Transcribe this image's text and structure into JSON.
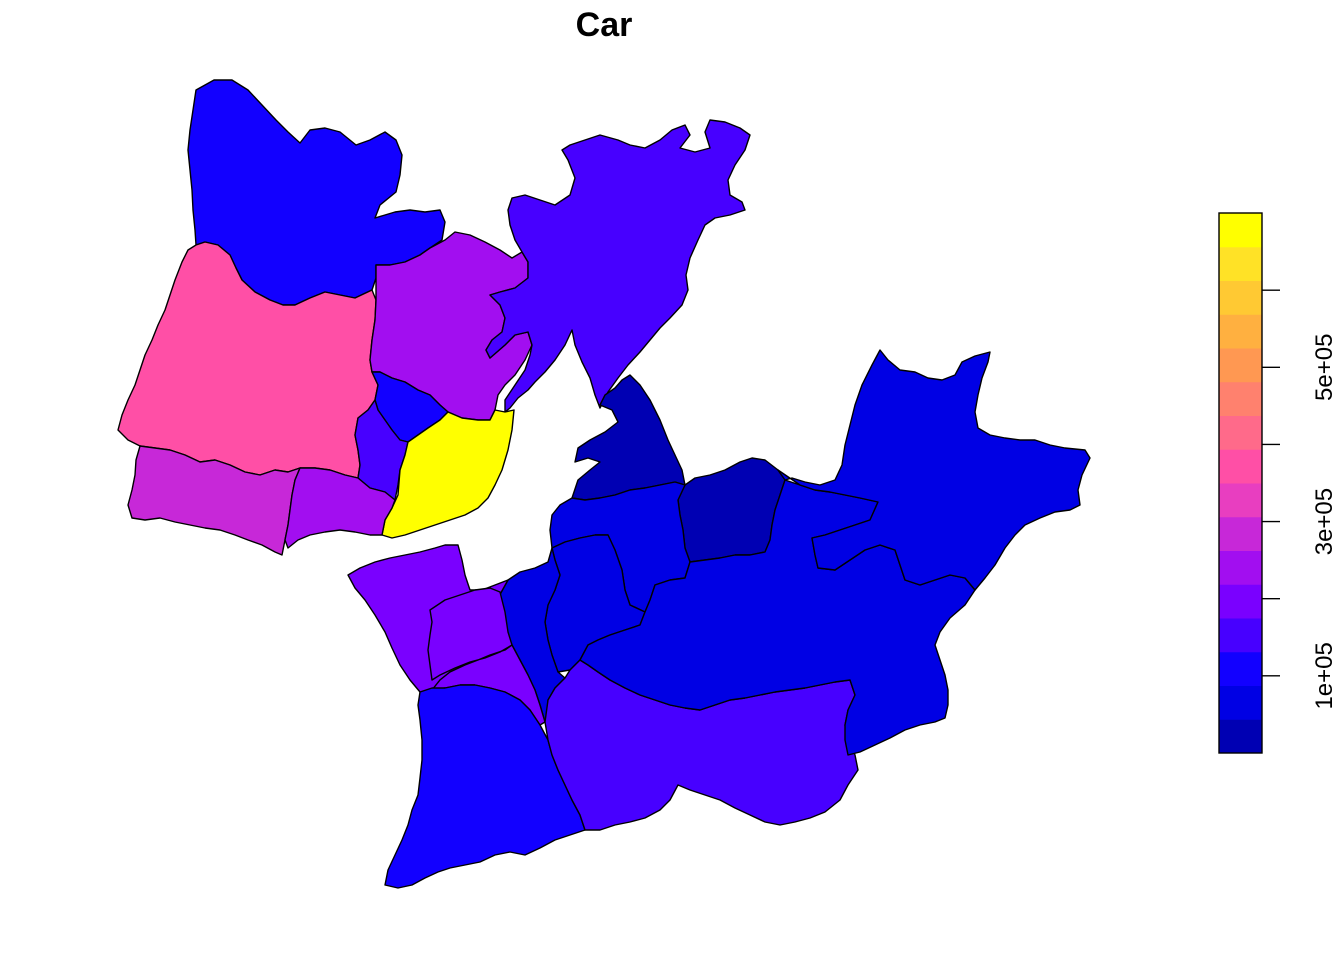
{
  "title": "Car",
  "legend": {
    "palette": [
      "#0000B3",
      "#0000E4",
      "#1200FF",
      "#4700FF",
      "#7A00FF",
      "#A20EF0",
      "#C728D8",
      "#E83EC0",
      "#FF4FA6",
      "#FF6A8A",
      "#FF816E",
      "#FF9852",
      "#FFB040",
      "#FFC933",
      "#FFE226",
      "#FFFF00"
    ],
    "min": 0,
    "max": 700000,
    "ticks": [
      {
        "value": 100000,
        "label": "1e+05"
      },
      {
        "value": 200000,
        "label": ""
      },
      {
        "value": 300000,
        "label": "3e+05"
      },
      {
        "value": 400000,
        "label": ""
      },
      {
        "value": 500000,
        "label": "5e+05"
      },
      {
        "value": 600000,
        "label": ""
      }
    ]
  },
  "regions": [
    {
      "id": "mafra",
      "value": 90000
    },
    {
      "id": "sintra",
      "value": 385000
    },
    {
      "id": "loures",
      "value": 255000
    },
    {
      "id": "vila-franca",
      "value": 140000
    },
    {
      "id": "odivelas",
      "value": 130000
    },
    {
      "id": "amadora",
      "value": 165000
    },
    {
      "id": "lisboa",
      "value": 695000
    },
    {
      "id": "cascais",
      "value": 285000
    },
    {
      "id": "oeiras",
      "value": 245000
    },
    {
      "id": "alcochete",
      "value": 15000
    },
    {
      "id": "montijo-west",
      "value": 15000
    },
    {
      "id": "moita",
      "value": 80000
    },
    {
      "id": "barreiro",
      "value": 85000
    },
    {
      "id": "seixal",
      "value": 80000
    },
    {
      "id": "almada",
      "value": 185000
    },
    {
      "id": "sesimbra-north",
      "value": 175000
    },
    {
      "id": "sesimbra",
      "value": 90000
    },
    {
      "id": "setubal",
      "value": 170000
    },
    {
      "id": "palmela",
      "value": 80000
    },
    {
      "id": "montijo-east",
      "value": 85000
    }
  ]
}
